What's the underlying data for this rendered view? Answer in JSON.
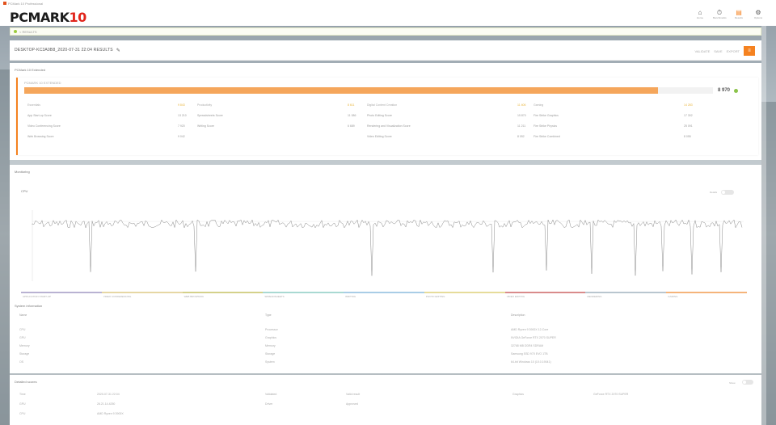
{
  "window": {
    "title": "PCMark 10 Professional"
  },
  "app": {
    "logo_main": "PCMARK",
    "logo_num": "10"
  },
  "header_icons": [
    {
      "icon": "home-icon",
      "label": "Home",
      "active": false
    },
    {
      "icon": "benchmarks-icon",
      "label": "Benchmarks",
      "active": false
    },
    {
      "icon": "results-icon",
      "label": "Results",
      "active": true
    },
    {
      "icon": "options-icon",
      "label": "Options",
      "active": false
    }
  ],
  "breadcrumb": {
    "text": "< RESULTS"
  },
  "system": {
    "name": "DESKTOP-KC3A0B8_2020-07-31 22:04 RESULTS",
    "actions": [
      "VALIDATE",
      "SAVE",
      "EXPORT"
    ],
    "menu_label": "≡"
  },
  "score": {
    "panel_title": "PCMark 10 Extended",
    "version_label": "PCMARK 10 EXTENDED",
    "value": "8 970",
    "fraction": 0.92,
    "columns": [
      {
        "group": "Essentials",
        "group_value": "9 843",
        "items": [
          [
            "App Start-up Score",
            "13 210"
          ],
          [
            "Video Conferencing Score",
            "7 920"
          ],
          [
            "Web Browsing Score",
            "9 042"
          ]
        ]
      },
      {
        "group": "Productivity",
        "group_value": "8 611",
        "items": [
          [
            "Spreadsheets Score",
            "11 086"
          ],
          [
            "Writing Score",
            "6 689"
          ]
        ]
      },
      {
        "group": "Digital Content Creation",
        "group_value": "11 406",
        "items": [
          [
            "Photo Editing Score",
            "15 870"
          ],
          [
            "Rendering and Visualization Score",
            "11 211"
          ],
          [
            "Video Editing Score",
            "8 052"
          ]
        ]
      },
      {
        "group": "Gaming",
        "group_value": "14 283",
        "items": [
          [
            "Fire Strike Graphics",
            "17 302"
          ],
          [
            "Fire Strike Physics",
            "25 091"
          ],
          [
            "Fire Strike Combined",
            "8 055"
          ]
        ]
      }
    ]
  },
  "monitoring": {
    "panel_title": "Monitoring",
    "selector": "CPU",
    "toggle_label": "Details",
    "toggle2_label": "Markers",
    "phases": [
      {
        "label": "APPLICATION START-UP",
        "color": "#b9b2d2"
      },
      {
        "label": "VIDEO CONFERENCING",
        "color": "#e6d7a4"
      },
      {
        "label": "WEB BROWSING",
        "color": "#d4d18a"
      },
      {
        "label": "SPREADSHEETS",
        "color": "#a9d9d2"
      },
      {
        "label": "WRITING",
        "color": "#a9cde6"
      },
      {
        "label": "PHOTO EDITING",
        "color": "#e6dc9a"
      },
      {
        "label": "VIDEO EDITING",
        "color": "#d98b8b"
      },
      {
        "label": "RENDERING",
        "color": "#b9c6cf"
      },
      {
        "label": "GAMING",
        "color": "#f5b47a"
      }
    ]
  },
  "system_info": {
    "panel_title": "System information",
    "headers": [
      "Name",
      "Type",
      "Description"
    ],
    "rows": [
      [
        "CPU",
        "Processor",
        "AMD Ryzen 9 3900X 12-Core"
      ],
      [
        "GPU",
        "Graphics",
        "NVIDIA GeForce RTX 2070 SUPER"
      ],
      [
        "Memory",
        "Memory",
        "32768 MB DDR4 SDRAM"
      ],
      [
        "Storage",
        "Storage",
        "Samsung SSD 970 EVO 1TB"
      ],
      [
        "OS",
        "System",
        "64-bit Windows 10 (10.0.19041)"
      ]
    ]
  },
  "details": {
    "panel_title": "Detailed scores",
    "toggle_label": "Show",
    "rows": [
      [
        "Time",
        "2020-07-31 22:04",
        "Validated",
        "Valid result",
        "Graphics",
        "GeForce RTX 2070 SUPER"
      ],
      [
        "GPU",
        "26.21.14.4250",
        "Driver",
        "Approved",
        "",
        ""
      ],
      [
        "CPU",
        "AMD Ryzen 9 3900X",
        "",
        "",
        "",
        ""
      ]
    ]
  }
}
